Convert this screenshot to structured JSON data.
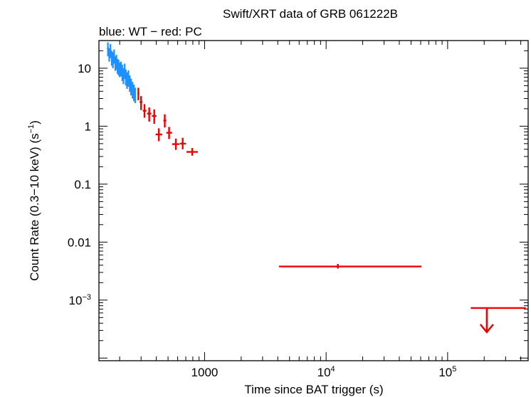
{
  "chart_data": {
    "type": "scatter",
    "title": "Swift/XRT data of GRB 061222B",
    "subtitle": "blue: WT − red: PC",
    "xlabel": "Time since BAT trigger (s)",
    "ylabel": "Count Rate (0.3−10 keV) (s",
    "ylabel_sup": "−1",
    "ylabel_end": ")",
    "x_scale": "log",
    "y_scale": "log",
    "xlim": [
      135,
      460000
    ],
    "ylim": [
      9e-05,
      30
    ],
    "x_ticks": [
      {
        "value": 1000,
        "label": "1000",
        "sup": ""
      },
      {
        "value": 10000,
        "label": "10",
        "sup": "4"
      },
      {
        "value": 100000,
        "label": "10",
        "sup": "5"
      }
    ],
    "y_ticks": [
      {
        "value": 10,
        "label": "10",
        "sup": ""
      },
      {
        "value": 1,
        "label": "1",
        "sup": ""
      },
      {
        "value": 0.1,
        "label": "0.1",
        "sup": ""
      },
      {
        "value": 0.01,
        "label": "0.01",
        "sup": ""
      },
      {
        "value": 0.001,
        "label": "10",
        "sup": "−3"
      }
    ],
    "colors": {
      "wt": "#1e90ff",
      "pc": "#ee0000"
    },
    "series": [
      {
        "mode": "WT",
        "points": [
          {
            "x": 160,
            "y": 22,
            "xlo": 157,
            "xhi": 163,
            "ylo": 16,
            "yhi": 28
          },
          {
            "x": 164,
            "y": 17,
            "xlo": 161,
            "xhi": 167,
            "ylo": 13,
            "yhi": 22
          },
          {
            "x": 168,
            "y": 20,
            "xlo": 165,
            "xhi": 171,
            "ylo": 15,
            "yhi": 26
          },
          {
            "x": 172,
            "y": 15,
            "xlo": 169,
            "xhi": 175,
            "ylo": 11,
            "yhi": 20
          },
          {
            "x": 176,
            "y": 14,
            "xlo": 173,
            "xhi": 179,
            "ylo": 10,
            "yhi": 19
          },
          {
            "x": 180,
            "y": 16,
            "xlo": 177,
            "xhi": 183,
            "ylo": 12,
            "yhi": 21
          },
          {
            "x": 184,
            "y": 12,
            "xlo": 181,
            "xhi": 187,
            "ylo": 9,
            "yhi": 16
          },
          {
            "x": 188,
            "y": 13,
            "xlo": 185,
            "xhi": 191,
            "ylo": 9.5,
            "yhi": 17
          },
          {
            "x": 192,
            "y": 11,
            "xlo": 189,
            "xhi": 195,
            "ylo": 8,
            "yhi": 14.5
          },
          {
            "x": 196,
            "y": 10.5,
            "xlo": 193,
            "xhi": 199,
            "ylo": 7.5,
            "yhi": 14
          },
          {
            "x": 200,
            "y": 9.5,
            "xlo": 197,
            "xhi": 203,
            "ylo": 7,
            "yhi": 12.5
          },
          {
            "x": 205,
            "y": 10,
            "xlo": 202,
            "xhi": 208,
            "ylo": 7.2,
            "yhi": 13
          },
          {
            "x": 210,
            "y": 8.5,
            "xlo": 207,
            "xhi": 213,
            "ylo": 6,
            "yhi": 11.5
          },
          {
            "x": 215,
            "y": 7.5,
            "xlo": 212,
            "xhi": 218,
            "ylo": 5.3,
            "yhi": 10
          },
          {
            "x": 220,
            "y": 9,
            "xlo": 217,
            "xhi": 223,
            "ylo": 6.5,
            "yhi": 12
          },
          {
            "x": 225,
            "y": 7,
            "xlo": 222,
            "xhi": 228,
            "ylo": 5,
            "yhi": 9.5
          },
          {
            "x": 230,
            "y": 6.2,
            "xlo": 227,
            "xhi": 233,
            "ylo": 4.4,
            "yhi": 8.5
          },
          {
            "x": 236,
            "y": 6.8,
            "xlo": 233,
            "xhi": 239,
            "ylo": 4.8,
            "yhi": 9.2
          },
          {
            "x": 242,
            "y": 5.5,
            "xlo": 239,
            "xhi": 245,
            "ylo": 3.9,
            "yhi": 7.5
          },
          {
            "x": 248,
            "y": 4.8,
            "xlo": 245,
            "xhi": 251,
            "ylo": 3.4,
            "yhi": 6.6
          },
          {
            "x": 255,
            "y": 4.2,
            "xlo": 252,
            "xhi": 258,
            "ylo": 3,
            "yhi": 5.8
          },
          {
            "x": 262,
            "y": 3.8,
            "xlo": 259,
            "xhi": 265,
            "ylo": 2.7,
            "yhi": 5.2
          },
          {
            "x": 268,
            "y": 3.4,
            "xlo": 265,
            "xhi": 271,
            "ylo": 2.5,
            "yhi": 4.6
          }
        ]
      },
      {
        "mode": "PC",
        "points": [
          {
            "x": 285,
            "y": 3.7,
            "xlo": 280,
            "xhi": 290,
            "ylo": 2.8,
            "yhi": 4.6
          },
          {
            "x": 300,
            "y": 2.6,
            "xlo": 292,
            "xhi": 308,
            "ylo": 1.9,
            "yhi": 3.3
          },
          {
            "x": 320,
            "y": 1.85,
            "xlo": 310,
            "xhi": 332,
            "ylo": 1.4,
            "yhi": 2.4
          },
          {
            "x": 350,
            "y": 1.65,
            "xlo": 336,
            "xhi": 364,
            "ylo": 1.2,
            "yhi": 2.1
          },
          {
            "x": 385,
            "y": 1.5,
            "xlo": 368,
            "xhi": 402,
            "ylo": 1.1,
            "yhi": 1.95
          },
          {
            "x": 420,
            "y": 0.72,
            "xlo": 395,
            "xhi": 448,
            "ylo": 0.55,
            "yhi": 0.92
          },
          {
            "x": 470,
            "y": 1.25,
            "xlo": 458,
            "xhi": 484,
            "ylo": 0.95,
            "yhi": 1.6
          },
          {
            "x": 510,
            "y": 0.77,
            "xlo": 484,
            "xhi": 540,
            "ylo": 0.6,
            "yhi": 0.97
          },
          {
            "x": 580,
            "y": 0.49,
            "xlo": 540,
            "xhi": 620,
            "ylo": 0.39,
            "yhi": 0.61
          },
          {
            "x": 660,
            "y": 0.5,
            "xlo": 625,
            "xhi": 700,
            "ylo": 0.4,
            "yhi": 0.63
          },
          {
            "x": 790,
            "y": 0.36,
            "xlo": 710,
            "xhi": 880,
            "ylo": 0.31,
            "yhi": 0.42
          },
          {
            "x": 12500,
            "y": 0.0038,
            "xlo": 4100,
            "xhi": 61000,
            "ylo": 0.0035,
            "yhi": 0.0042
          },
          {
            "x": 210000,
            "y": 0.00073,
            "xlo": 155000,
            "xhi": 440000,
            "upper_limit": true
          }
        ]
      }
    ]
  }
}
